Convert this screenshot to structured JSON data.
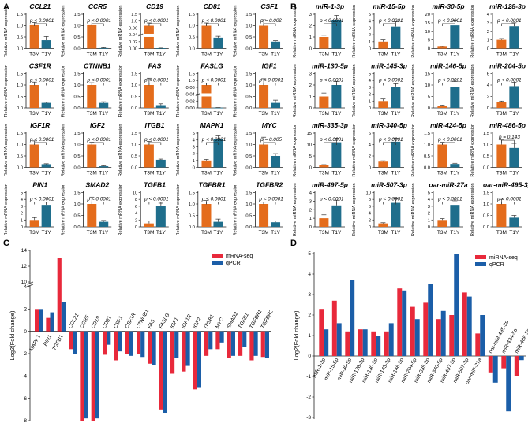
{
  "colors": {
    "t3m": "#E46C1C",
    "t1y": "#1F6E8C",
    "mrna_seq": "#E8293B",
    "qpcr": "#1B5EA8",
    "axis": "#222222"
  },
  "panels": [
    {
      "label": "A",
      "title": "Relative mRNA expression of genes (T3M vs T1Y)"
    },
    {
      "label": "B",
      "title": "Relative expression of miRNAs (T3M vs T1Y)"
    },
    {
      "label": "C",
      "title": "Gene fold change: mRNA-seq vs qPCR"
    },
    {
      "label": "D",
      "title": "miRNA fold change: miRNA-seq vs qPCR"
    }
  ],
  "chart_data": [
    {
      "panel": "A",
      "type": "bar",
      "categories": [
        "T3M",
        "T1Y"
      ],
      "ylabel": "Relative mRNA expression",
      "subplots": [
        {
          "title": "CCL21",
          "pvalue": "p < 0.0001",
          "t3m": 1.02,
          "t3m_err": 0.12,
          "t1y": 0.36,
          "t1y_err": 0.16,
          "ymax": 1.5,
          "ticks": [
            "0.0",
            "0.5",
            "1.0",
            "1.5"
          ],
          "broken": false
        },
        {
          "title": "CCR5",
          "pvalue": "p < 0.0001",
          "t3m": 1.02,
          "t3m_err": 0.22,
          "t1y": 0.02,
          "t1y_err": 0.02,
          "ymax": 1.5,
          "ticks": [
            "0.0",
            "0.5",
            "1.0",
            "1.5"
          ],
          "broken": false
        },
        {
          "title": "CD19",
          "pvalue": "p < 0.0001",
          "t3m": 1.0,
          "t3m_err": 0.12,
          "t1y": 0.01,
          "t1y_err": 0.01,
          "ymax": 1.5,
          "ticks": [
            "0.00",
            "0.02",
            "0.04",
            "0.06",
            "1.0",
            "1.5"
          ],
          "broken": true
        },
        {
          "title": "CD81",
          "pvalue": "p < 0.0001",
          "t3m": 1.0,
          "t3m_err": 0.12,
          "t1y": 0.47,
          "t1y_err": 0.06,
          "ymax": 1.5,
          "ticks": [
            "0.0",
            "0.5",
            "1.0",
            "1.5"
          ],
          "broken": false
        },
        {
          "title": "CSF1",
          "pvalue": "p = 0.002",
          "t3m": 1.0,
          "t3m_err": 0.26,
          "t1y": 0.3,
          "t1y_err": 0.04,
          "ymax": 1.5,
          "ticks": [
            "0.0",
            "0.5",
            "1.0",
            "1.5"
          ],
          "broken": false
        },
        {
          "title": "CSF1R",
          "pvalue": "p < 0.0001",
          "t3m": 1.0,
          "t3m_err": 0.13,
          "t1y": 0.22,
          "t1y_err": 0.03,
          "ymax": 1.5,
          "ticks": [
            "0.0",
            "0.5",
            "1.0",
            "1.5"
          ],
          "broken": false
        },
        {
          "title": "CTNNB1",
          "pvalue": "p < 0.0001",
          "t3m": 1.0,
          "t3m_err": 0.1,
          "t1y": 0.22,
          "t1y_err": 0.05,
          "ymax": 1.5,
          "ticks": [
            "0.0",
            "0.5",
            "1.0",
            "1.5"
          ],
          "broken": false
        },
        {
          "title": "FAS",
          "pvalue": "p < 0.0001",
          "t3m": 1.0,
          "t3m_err": 0.3,
          "t1y": 0.12,
          "t1y_err": 0.06,
          "ymax": 1.5,
          "ticks": [
            "0.0",
            "0.5",
            "1.0",
            "1.5"
          ],
          "broken": false
        },
        {
          "title": "FASLG",
          "pvalue": "p < 0.0001",
          "t3m": 1.0,
          "t3m_err": 0.08,
          "t1y": 0.01,
          "t1y_err": 0.005,
          "ymax": 1.5,
          "ticks": [
            "0.00",
            "0.02",
            "0.04",
            "0.06",
            "1.0",
            "1.5"
          ],
          "broken": true
        },
        {
          "title": "IGF1",
          "pvalue": "p < 0.0001",
          "t3m": 1.0,
          "t3m_err": 0.28,
          "t1y": 0.22,
          "t1y_err": 0.12,
          "ymax": 1.5,
          "ticks": [
            "0.0",
            "0.5",
            "1.0",
            "1.5"
          ],
          "broken": false
        },
        {
          "title": "IGF1R",
          "pvalue": "p < 0.0001",
          "t3m": 1.0,
          "t3m_err": 0.16,
          "t1y": 0.14,
          "t1y_err": 0.02,
          "ymax": 1.5,
          "ticks": [
            "0.0",
            "0.5",
            "1.0",
            "1.5"
          ],
          "broken": false
        },
        {
          "title": "IGF2",
          "pvalue": "p < 0.0001",
          "t3m": 1.0,
          "t3m_err": 0.1,
          "t1y": 0.05,
          "t1y_err": 0.02,
          "ymax": 1.5,
          "ticks": [
            "0.0",
            "0.5",
            "1.0",
            "1.5"
          ],
          "broken": false
        },
        {
          "title": "ITGB1",
          "pvalue": "p < 0.0001",
          "t3m": 1.0,
          "t3m_err": 0.14,
          "t1y": 0.33,
          "t1y_err": 0.03,
          "ymax": 1.5,
          "ticks": [
            "0.0",
            "0.5",
            "1.0",
            "1.5"
          ],
          "broken": false
        },
        {
          "title": "MAPK1",
          "pvalue": "p < 0.0001",
          "t3m": 1.0,
          "t3m_err": 0.15,
          "t1y": 4.1,
          "t1y_err": 0.5,
          "ymax": 5,
          "ticks": [
            "0",
            "1",
            "2",
            "3",
            "4",
            "5"
          ],
          "broken": false
        },
        {
          "title": "MYC",
          "pvalue": "p = 0.005",
          "t3m": 1.0,
          "t3m_err": 0.32,
          "t1y": 0.5,
          "t1y_err": 0.1,
          "ymax": 1.5,
          "ticks": [
            "0.0",
            "0.5",
            "1.0",
            "1.5"
          ],
          "broken": false
        },
        {
          "title": "PIN1",
          "pvalue": "p < 0.0001",
          "t3m": 1.0,
          "t3m_err": 0.35,
          "t1y": 3.2,
          "t1y_err": 0.4,
          "ymax": 5,
          "ticks": [
            "0",
            "1",
            "2",
            "3",
            "4",
            "5"
          ],
          "broken": false
        },
        {
          "title": "SMAD2",
          "pvalue": "p < 0.0001",
          "t3m": 1.0,
          "t3m_err": 0.3,
          "t1y": 0.22,
          "t1y_err": 0.06,
          "ymax": 1.5,
          "ticks": [
            "0.0",
            "0.5",
            "1.0",
            "1.5"
          ],
          "broken": false
        },
        {
          "title": "TGFB1",
          "pvalue": "p < 0.0001",
          "t3m": 1.0,
          "t3m_err": 0.7,
          "t1y": 6.1,
          "t1y_err": 0.8,
          "ymax": 10,
          "ticks": [
            "0",
            "2",
            "4",
            "6",
            "8",
            "10"
          ],
          "broken": false
        },
        {
          "title": "TGFBR1",
          "pvalue": "p < 0.0001",
          "t3m": 1.0,
          "t3m_err": 0.15,
          "t1y": 0.22,
          "t1y_err": 0.12,
          "ymax": 1.5,
          "ticks": [
            "0.0",
            "0.5",
            "1.0",
            "1.5"
          ],
          "broken": false
        },
        {
          "title": "TGFBR2",
          "pvalue": "p < 0.0001",
          "t3m": 1.0,
          "t3m_err": 0.08,
          "t1y": 0.2,
          "t1y_err": 0.06,
          "ymax": 1.5,
          "ticks": [
            "0.0",
            "0.5",
            "1.0",
            "1.5"
          ],
          "broken": false
        }
      ]
    },
    {
      "panel": "B",
      "type": "bar",
      "categories": [
        "T3M",
        "T1Y"
      ],
      "ylabel": "Relative miRNA expression",
      "subplots": [
        {
          "title": "miR-1-3p",
          "pvalue": "p < 0.0001",
          "t3m": 1.0,
          "t3m_err": 0.15,
          "t1y": 2.5,
          "t1y_err": 0.4,
          "ymax": 3,
          "ticks": [
            "0",
            "1",
            "2",
            "3"
          ]
        },
        {
          "title": "miR-15-5p",
          "pvalue": "p < 0.0001",
          "t3m": 1.0,
          "t3m_err": 0.25,
          "t1y": 3.2,
          "t1y_err": 0.7,
          "ymax": 5,
          "ticks": [
            "0",
            "1",
            "2",
            "3",
            "4",
            "5"
          ]
        },
        {
          "title": "miR-30-5p",
          "pvalue": "p < 0.0001",
          "t3m": 1.0,
          "t3m_err": 0.2,
          "t1y": 13.5,
          "t1y_err": 2.5,
          "ymax": 20,
          "ticks": [
            "0",
            "5",
            "10",
            "15",
            "20"
          ]
        },
        {
          "title": "miR-128-3p",
          "pvalue": "p < 0.0001",
          "t3m": 1.0,
          "t3m_err": 0.15,
          "t1y": 2.6,
          "t1y_err": 0.4,
          "ymax": 4,
          "ticks": [
            "0",
            "1",
            "2",
            "3",
            "4"
          ]
        },
        {
          "title": "miR-130-5p",
          "pvalue": "p < 0.0001",
          "t3m": 1.0,
          "t3m_err": 0.3,
          "t1y": 2.0,
          "t1y_err": 0.3,
          "ymax": 3,
          "ticks": [
            "0",
            "1",
            "2",
            "3"
          ]
        },
        {
          "title": "miR-145-3p",
          "pvalue": "p < 0.0001",
          "t3m": 1.0,
          "t3m_err": 0.3,
          "t1y": 3.0,
          "t1y_err": 0.5,
          "ymax": 5,
          "ticks": [
            "0",
            "1",
            "2",
            "3",
            "4",
            "5"
          ]
        },
        {
          "title": "miR-146-5p",
          "pvalue": "p < 0.0001",
          "t3m": 1.0,
          "t3m_err": 0.2,
          "t1y": 9.0,
          "t1y_err": 2.5,
          "ymax": 15,
          "ticks": [
            "0",
            "5",
            "10",
            "15"
          ]
        },
        {
          "title": "miR-204-5p",
          "pvalue": "p < 0.0001",
          "t3m": 1.0,
          "t3m_err": 0.2,
          "t1y": 3.8,
          "t1y_err": 0.7,
          "ymax": 6,
          "ticks": [
            "0",
            "2",
            "4",
            "6"
          ]
        },
        {
          "title": "miR-335-3p",
          "pvalue": "p < 0.0001",
          "t3m": 1.0,
          "t3m_err": 0.2,
          "t1y": 11.0,
          "t1y_err": 1.8,
          "ymax": 15,
          "ticks": [
            "0",
            "5",
            "10",
            "15"
          ]
        },
        {
          "title": "miR-340-5p",
          "pvalue": "p < 0.0001",
          "t3m": 1.0,
          "t3m_err": 0.15,
          "t1y": 4.5,
          "t1y_err": 0.6,
          "ymax": 6,
          "ticks": [
            "0",
            "2",
            "4",
            "6"
          ]
        },
        {
          "title": "miR-424-5p",
          "pvalue": "p < 0.0001",
          "t3m": 1.0,
          "t3m_err": 0.1,
          "t1y": 0.15,
          "t1y_err": 0.03,
          "ymax": 1.5,
          "ticks": [
            "0.0",
            "0.5",
            "1.0",
            "1.5"
          ]
        },
        {
          "title": "miR-486-5p",
          "pvalue": "p = 0.143",
          "t3m": 1.0,
          "t3m_err": 0.2,
          "t1y": 0.85,
          "t1y_err": 0.2,
          "ymax": 1.5,
          "ticks": [
            "0.0",
            "0.5",
            "1.0",
            "1.5"
          ]
        },
        {
          "title": "miR-497-5p",
          "pvalue": "p < 0.0001",
          "t3m": 1.0,
          "t3m_err": 0.4,
          "t1y": 2.5,
          "t1y_err": 0.6,
          "ymax": 4,
          "ticks": [
            "0",
            "1",
            "2",
            "3",
            "4"
          ]
        },
        {
          "title": "miR-507-3p",
          "pvalue": "p < 0.0001",
          "t3m": 1.0,
          "t3m_err": 0.2,
          "t1y": 7.0,
          "t1y_err": 1.2,
          "ymax": 10,
          "ticks": [
            "0",
            "2",
            "4",
            "6",
            "8",
            "10"
          ]
        },
        {
          "title": "oar-miR-27a",
          "pvalue": "p < 0.0001",
          "t3m": 1.0,
          "t3m_err": 0.2,
          "t1y": 3.2,
          "t1y_err": 0.6,
          "ymax": 5,
          "ticks": [
            "0",
            "1",
            "2",
            "3",
            "4",
            "5"
          ]
        },
        {
          "title": "oar-miR-495-3p",
          "pvalue": "p < 0.0001",
          "t3m": 1.0,
          "t3m_err": 0.2,
          "t1y": 0.4,
          "t1y_err": 0.1,
          "ymax": 1.5,
          "ticks": [
            "0.0",
            "0.5",
            "1.0",
            "1.5"
          ]
        }
      ]
    },
    {
      "panel": "C",
      "type": "bar",
      "title": "",
      "ylabel": "Log2(Fold change)",
      "ylim": [
        -8,
        14
      ],
      "yticks": [
        "-8",
        "-6",
        "-4",
        "-2",
        "0",
        "2",
        "4",
        "10",
        "12",
        "14"
      ],
      "legend": [
        "mRNA-seq",
        "qPCR"
      ],
      "categories": [
        "MAPK1",
        "PIN1",
        "TGFB1",
        "CCL21",
        "CCR5",
        "CD19",
        "CD81",
        "CSF1",
        "CSF1R",
        "CTNNB1",
        "FAS",
        "FASLG",
        "IGF1",
        "IGF1R",
        "IGF2",
        "ITGB1",
        "MYC",
        "SMAD2",
        "TGFB1",
        "TGFBR1",
        "TGFBR2"
      ],
      "series": [
        {
          "name": "mRNA-seq",
          "values": [
            2.0,
            1.2,
            13.0,
            -1.6,
            -8.0,
            -8.0,
            -2.1,
            -2.6,
            -2.0,
            -2.0,
            -2.9,
            -7.0,
            -3.8,
            -3.6,
            -5.2,
            -2.2,
            -1.6,
            -2.4,
            -2.2,
            -2.6,
            -2.3
          ]
        },
        {
          "name": "qPCR",
          "values": [
            2.0,
            1.7,
            2.6,
            -2.0,
            -7.8,
            -7.8,
            -1.2,
            -1.8,
            -2.2,
            -2.3,
            -3.0,
            -7.3,
            -2.4,
            -3.1,
            -5.0,
            -1.6,
            -1.0,
            -2.2,
            -1.4,
            -2.2,
            -2.4
          ]
        }
      ]
    },
    {
      "panel": "D",
      "type": "bar",
      "title": "",
      "ylabel": "Log2(Fold change)",
      "ylim": [
        -3,
        5
      ],
      "yticks": [
        "-3",
        "-2",
        "-1",
        "0",
        "1",
        "2",
        "3",
        "4",
        "5"
      ],
      "legend": [
        "miRNA-seq",
        "qPCR"
      ],
      "categories": [
        "miR-1-3p",
        "miR-15-5p",
        "miR-30-5p",
        "miR-128-3p",
        "miR-130-5p",
        "miR-145-3p",
        "miR-146-5p",
        "miR-204-5p",
        "miR-335-3p",
        "miR-340-5p",
        "miR-497-5p",
        "miR-507-3p",
        "oar-miR-27a",
        "oar-miR-495-3p",
        "miR-424-5p",
        "miR-486-5p"
      ],
      "series": [
        {
          "name": "miRNA-seq",
          "values": [
            2.3,
            2.7,
            1.2,
            1.3,
            1.2,
            1.2,
            3.3,
            2.4,
            2.6,
            1.8,
            2.0,
            3.1,
            1.1,
            -0.8,
            -0.6,
            -1.0
          ]
        },
        {
          "name": "qPCR",
          "values": [
            1.3,
            1.6,
            3.7,
            1.3,
            1.0,
            1.6,
            3.2,
            1.8,
            3.5,
            2.2,
            5.0,
            2.9,
            2.0,
            -1.3,
            -2.7,
            -0.2
          ]
        }
      ]
    }
  ]
}
